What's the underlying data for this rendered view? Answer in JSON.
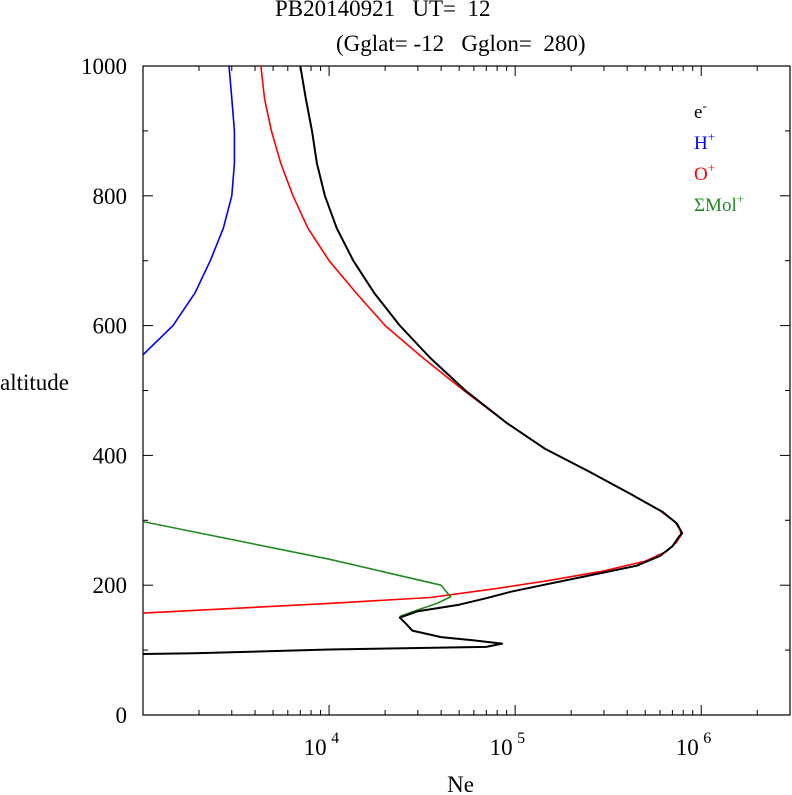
{
  "chart_data": {
    "type": "line",
    "title": "PB20140921   UT=  12",
    "subtitle": "(Gglat= -12   Gglon=  280)",
    "xlabel": "Ne",
    "ylabel": "altitude",
    "x_scale": "log",
    "xlim": [
      1000,
      3000000
    ],
    "ylim": [
      0,
      1000
    ],
    "x_ticks": [
      {
        "value": 10000,
        "base": "10",
        "exp": "4"
      },
      {
        "value": 100000,
        "base": "10",
        "exp": "5"
      },
      {
        "value": 1000000,
        "base": "10",
        "exp": "6"
      }
    ],
    "y_ticks": [
      "0",
      "200",
      "400",
      "600",
      "800",
      "1000"
    ],
    "y_tick_values": [
      0,
      200,
      400,
      600,
      800,
      1000
    ],
    "legend_position": "top-right",
    "series": [
      {
        "name": "e",
        "name_sup": "-",
        "color": "#000000",
        "points": [
          [
            1000,
            94
          ],
          [
            1900,
            95
          ],
          [
            10000,
            101
          ],
          [
            70000,
            105
          ],
          [
            85000,
            110
          ],
          [
            60000,
            115
          ],
          [
            40000,
            120
          ],
          [
            28000,
            130
          ],
          [
            26000,
            140
          ],
          [
            24000,
            150
          ],
          [
            30000,
            160
          ],
          [
            50000,
            170
          ],
          [
            70000,
            180
          ],
          [
            95000,
            190
          ],
          [
            140000,
            200
          ],
          [
            250000,
            215
          ],
          [
            450000,
            230
          ],
          [
            600000,
            245
          ],
          [
            700000,
            260
          ],
          [
            760000,
            275
          ],
          [
            790000,
            280
          ],
          [
            740000,
            295
          ],
          [
            620000,
            313
          ],
          [
            420000,
            340
          ],
          [
            250000,
            375
          ],
          [
            145000,
            410
          ],
          [
            90000,
            450
          ],
          [
            54000,
            500
          ],
          [
            35000,
            550
          ],
          [
            24000,
            600
          ],
          [
            17500,
            650
          ],
          [
            13500,
            700
          ],
          [
            11000,
            750
          ],
          [
            9500,
            800
          ],
          [
            8600,
            850
          ],
          [
            8100,
            900
          ],
          [
            7500,
            950
          ],
          [
            7000,
            1000
          ]
        ]
      },
      {
        "name": "H",
        "name_sup": "+",
        "color": "#0000ff",
        "points": [
          [
            1000,
            555
          ],
          [
            1450,
            600
          ],
          [
            1900,
            650
          ],
          [
            2300,
            700
          ],
          [
            2700,
            750
          ],
          [
            3000,
            800
          ],
          [
            3100,
            850
          ],
          [
            3100,
            900
          ],
          [
            3000,
            950
          ],
          [
            2900,
            1000
          ]
        ]
      },
      {
        "name": "O",
        "name_sup": "+",
        "color": "#ff0000",
        "points": [
          [
            1000,
            157
          ],
          [
            10000,
            172
          ],
          [
            35000,
            181
          ],
          [
            80000,
            195
          ],
          [
            150000,
            207
          ],
          [
            300000,
            222
          ],
          [
            500000,
            237
          ],
          [
            650000,
            252
          ],
          [
            730000,
            265
          ],
          [
            780000,
            277
          ],
          [
            770000,
            285
          ],
          [
            720000,
            298
          ],
          [
            600000,
            315
          ],
          [
            420000,
            340
          ],
          [
            250000,
            375
          ],
          [
            145000,
            410
          ],
          [
            90000,
            450
          ],
          [
            53000,
            500
          ],
          [
            32000,
            550
          ],
          [
            20000,
            600
          ],
          [
            14000,
            650
          ],
          [
            10000,
            700
          ],
          [
            7700,
            750
          ],
          [
            6400,
            800
          ],
          [
            5500,
            850
          ],
          [
            4900,
            900
          ],
          [
            4500,
            950
          ],
          [
            4300,
            1000
          ]
        ]
      },
      {
        "name": "ΣMol",
        "name_sup": "+",
        "color": "#228b22",
        "points": [
          [
            1000,
            298
          ],
          [
            10000,
            240
          ],
          [
            40000,
            200
          ],
          [
            45000,
            182
          ],
          [
            38000,
            172
          ],
          [
            30000,
            162
          ],
          [
            24000,
            152
          ]
        ]
      }
    ]
  }
}
